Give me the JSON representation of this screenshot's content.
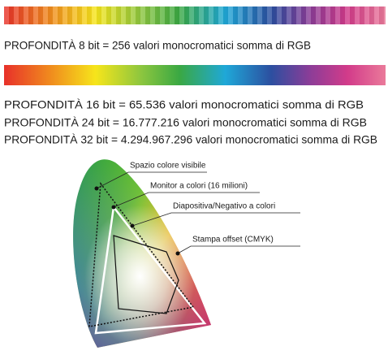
{
  "depth_lines": [
    "PROFONDITÀ 8 bit = 256 valori monocromatici somma di RGB",
    "PROFONDITÀ 16 bit = 65.536 valori monocromatici somma di RGB",
    "PROFONDITÀ 24 bit = 16.777.216 valori monocromatici somma di RGB",
    "PROFONDITÀ 32 bit = 4.294.967.296 valori monocromatici somma di RGB"
  ],
  "gamut_labels": [
    "Spazio colore visibile",
    "Monitor a colori (16 milioni)",
    "Diapositiva/Negativo a colori",
    "Stampa offset (CMYK)"
  ]
}
